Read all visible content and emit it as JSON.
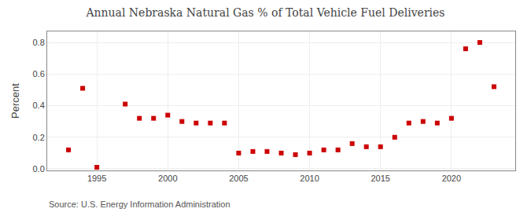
{
  "chart_data": {
    "type": "scatter",
    "title": "Annual Nebraska Natural Gas % of Total Vehicle Fuel Deliveries",
    "ylabel": "Percent",
    "annotations": [
      "Source: U.S. Energy Information Administration"
    ],
    "x": [
      1993,
      1994,
      1995,
      1997,
      1998,
      1999,
      2000,
      2001,
      2002,
      2003,
      2004,
      2005,
      2006,
      2007,
      2008,
      2009,
      2010,
      2011,
      2012,
      2013,
      2014,
      2015,
      2016,
      2017,
      2018,
      2019,
      2020,
      2021,
      2022,
      2023
    ],
    "values": [
      0.12,
      0.51,
      0.01,
      0.41,
      0.32,
      0.32,
      0.34,
      0.3,
      0.29,
      0.29,
      0.29,
      0.1,
      0.11,
      0.11,
      0.1,
      0.09,
      0.1,
      0.12,
      0.12,
      0.16,
      0.14,
      0.14,
      0.2,
      0.29,
      0.3,
      0.29,
      0.32,
      0.76,
      0.8,
      0.52
    ],
    "color": "#cc0000",
    "marker": "square",
    "xlim": [
      1991.5,
      2024.5
    ],
    "ylim": [
      -0.01,
      0.87
    ],
    "xticks": [
      1995,
      2000,
      2005,
      2010,
      2015,
      2020
    ],
    "yticks": [
      {
        "value": 0.0,
        "label": "0.0"
      },
      0.2,
      0.4,
      0.6,
      0.8
    ],
    "grid": true
  }
}
